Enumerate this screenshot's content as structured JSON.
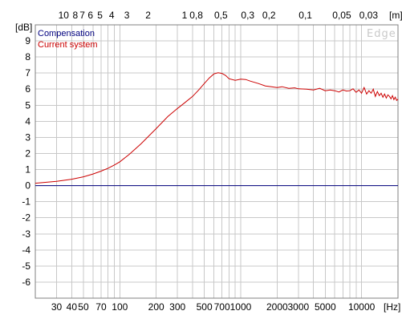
{
  "chart_data": {
    "type": "line",
    "watermark": "Edge",
    "x_unit": "[Hz]",
    "y_unit": "[dB]",
    "top_unit": "[m]",
    "xlim": [
      20,
      20000
    ],
    "ylim": [
      -7,
      10
    ],
    "x_scale": "log",
    "grid": true,
    "legend_position": "top-left",
    "x_tick_labels": [
      {
        "v": 30,
        "t": "30"
      },
      {
        "v": 40,
        "t": "40"
      },
      {
        "v": 50,
        "t": "50"
      },
      {
        "v": 70,
        "t": "70"
      },
      {
        "v": 100,
        "t": "100"
      },
      {
        "v": 200,
        "t": "200"
      },
      {
        "v": 300,
        "t": "300"
      },
      {
        "v": 500,
        "t": "500"
      },
      {
        "v": 700,
        "t": "700"
      },
      {
        "v": 1000,
        "t": "1000"
      },
      {
        "v": 2000,
        "t": "2000"
      },
      {
        "v": 3000,
        "t": "3000"
      },
      {
        "v": 5000,
        "t": "5000"
      },
      {
        "v": 10000,
        "t": "10000"
      }
    ],
    "top_tick_labels": [
      {
        "m": 10,
        "t": "10"
      },
      {
        "m": 8,
        "t": "8"
      },
      {
        "m": 7,
        "t": "7"
      },
      {
        "m": 6,
        "t": "6"
      },
      {
        "m": 5,
        "t": "5"
      },
      {
        "m": 4,
        "t": "4"
      },
      {
        "m": 3,
        "t": "3"
      },
      {
        "m": 2,
        "t": "2"
      },
      {
        "m": 1,
        "t": "1"
      },
      {
        "m": 0.8,
        "t": "0,8"
      },
      {
        "m": 0.5,
        "t": "0,5"
      },
      {
        "m": 0.3,
        "t": "0,3"
      },
      {
        "m": 0.2,
        "t": "0,2"
      },
      {
        "m": 0.1,
        "t": "0,1"
      },
      {
        "m": 0.05,
        "t": "0,05"
      },
      {
        "m": 0.03,
        "t": "0,03"
      }
    ],
    "y_ticks": [
      9,
      8,
      7,
      6,
      5,
      4,
      3,
      2,
      1,
      0,
      -1,
      -2,
      -3,
      -4,
      -5,
      -6
    ],
    "series": [
      {
        "name": "Compensation",
        "color": "#00007f",
        "x": [
          20,
          20000
        ],
        "y": [
          0,
          0
        ]
      },
      {
        "name": "Current system",
        "color": "#cc0000",
        "x": [
          20,
          30,
          40,
          50,
          60,
          70,
          80,
          90,
          100,
          120,
          150,
          200,
          250,
          300,
          350,
          400,
          450,
          500,
          550,
          600,
          650,
          700,
          750,
          800,
          900,
          1000,
          1100,
          1200,
          1400,
          1600,
          1800,
          2000,
          2200,
          2500,
          2800,
          3000,
          3500,
          4000,
          4500,
          5000,
          5500,
          6000,
          6500,
          7000,
          7500,
          8000,
          8500,
          9000,
          9500,
          10000,
          10500,
          11000,
          11500,
          12000,
          12500,
          13000,
          13500,
          14000,
          14500,
          15000,
          15500,
          16000,
          16500,
          17000,
          17500,
          18000,
          18500,
          19000,
          19500,
          20000
        ],
        "y": [
          0.15,
          0.27,
          0.4,
          0.55,
          0.72,
          0.9,
          1.08,
          1.28,
          1.48,
          1.95,
          2.6,
          3.55,
          4.3,
          4.8,
          5.2,
          5.55,
          5.95,
          6.35,
          6.7,
          6.95,
          7.02,
          6.98,
          6.85,
          6.65,
          6.55,
          6.62,
          6.6,
          6.5,
          6.35,
          6.2,
          6.15,
          6.1,
          6.15,
          6.05,
          6.08,
          6.02,
          6.0,
          5.95,
          6.05,
          5.9,
          5.95,
          5.9,
          5.82,
          5.95,
          5.88,
          5.9,
          6.02,
          5.8,
          5.95,
          5.75,
          6.1,
          5.7,
          5.9,
          5.75,
          6.0,
          5.55,
          5.85,
          5.6,
          5.75,
          5.5,
          5.7,
          5.45,
          5.65,
          5.55,
          5.4,
          5.6,
          5.35,
          5.5,
          5.3,
          5.38
        ]
      }
    ]
  }
}
